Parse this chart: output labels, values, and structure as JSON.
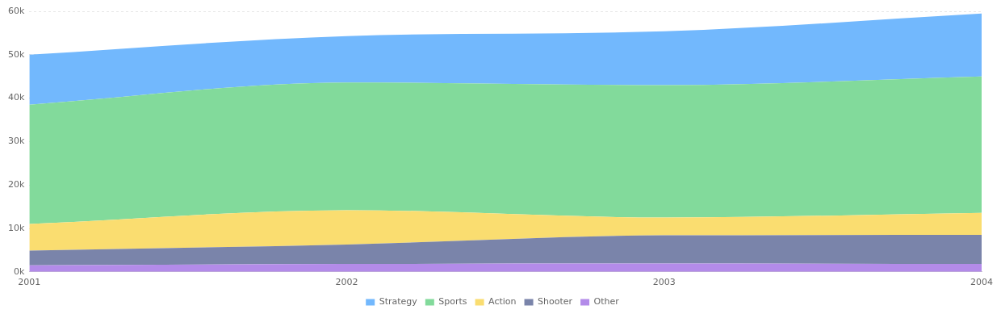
{
  "chart_data": {
    "type": "area",
    "stacked": true,
    "categories": [
      "2001",
      "2002",
      "2003",
      "2004"
    ],
    "series": [
      {
        "name": "Other",
        "color": "#b38be9",
        "values": [
          1500,
          1800,
          1900,
          1800
        ]
      },
      {
        "name": "Shooter",
        "color": "#7a84aa",
        "values": [
          3400,
          4500,
          6500,
          6700
        ]
      },
      {
        "name": "Action",
        "color": "#fadd70",
        "values": [
          6100,
          7900,
          4100,
          5100
        ]
      },
      {
        "name": "Sports",
        "color": "#82da9b",
        "values": [
          27500,
          29400,
          30500,
          31400
        ]
      },
      {
        "name": "Strategy",
        "color": "#72b8fd",
        "values": [
          11500,
          10700,
          12400,
          14500
        ]
      }
    ],
    "ylim": [
      0,
      60000
    ],
    "yticks": [
      {
        "value": 0,
        "label": "0k"
      },
      {
        "value": 10000,
        "label": "10k"
      },
      {
        "value": 20000,
        "label": "20k"
      },
      {
        "value": 30000,
        "label": "30k"
      },
      {
        "value": 40000,
        "label": "40k"
      },
      {
        "value": 50000,
        "label": "50k"
      },
      {
        "value": 60000,
        "label": "60k"
      }
    ],
    "grid": "y",
    "legend": "bottom"
  }
}
